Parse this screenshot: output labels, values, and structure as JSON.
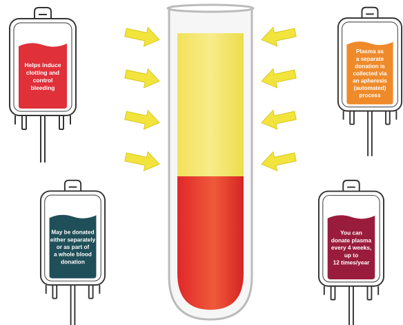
{
  "bags": [
    {
      "color": "#e0303a",
      "lines": [
        "Helps induce",
        "clotting and",
        "control",
        "bleeding"
      ]
    },
    {
      "color": "#ef8a2a",
      "lines": [
        "Plasma as",
        "a separate",
        "donation is",
        "collected via",
        "an apheresis",
        "(automated)",
        "process"
      ]
    },
    {
      "color": "#1f4f58",
      "lines": [
        "May be donated",
        "either separately",
        "or as part of",
        "a whole blood",
        "donation"
      ]
    },
    {
      "color": "#9a1c3c",
      "lines": [
        "You can",
        "donate plasma",
        "every 4 weeks,",
        "up to",
        "12 times/year"
      ]
    }
  ]
}
